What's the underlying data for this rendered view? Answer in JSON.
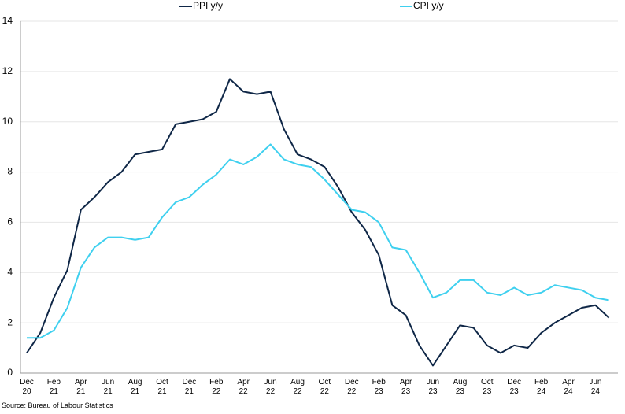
{
  "chart_data": {
    "type": "line",
    "categories": [
      "Dec\n20",
      null,
      "Feb\n21",
      null,
      "Apr\n21",
      null,
      "Jun\n21",
      null,
      "Aug\n21",
      null,
      "Oct\n21",
      null,
      "Dec\n21",
      null,
      "Feb\n22",
      null,
      "Apr\n22",
      null,
      "Jun\n22",
      null,
      "Aug\n22",
      null,
      "Oct\n22",
      null,
      "Dec\n22",
      null,
      "Feb\n23",
      null,
      "Apr\n23",
      null,
      "Jun\n23",
      null,
      "Aug\n23",
      null,
      "Oct\n23",
      null,
      "Dec\n23",
      null,
      "Feb\n24",
      null,
      "Apr\n24",
      null,
      "Jun\n24",
      null
    ],
    "series": [
      {
        "name": "PPI y/y",
        "color": "#0f2747",
        "values": [
          0.8,
          1.6,
          3.0,
          4.1,
          6.5,
          7.0,
          7.6,
          8.0,
          8.7,
          8.8,
          8.9,
          9.9,
          10.0,
          10.1,
          10.4,
          11.7,
          11.2,
          11.1,
          11.2,
          9.7,
          8.7,
          8.5,
          8.2,
          7.4,
          6.4,
          5.7,
          4.7,
          2.7,
          2.3,
          1.1,
          0.3,
          1.1,
          1.9,
          1.8,
          1.1,
          0.8,
          1.1,
          1.0,
          1.6,
          2.0,
          2.3,
          2.6,
          2.7,
          2.2
        ]
      },
      {
        "name": "CPI y/y",
        "color": "#3fd0ef",
        "values": [
          1.4,
          1.4,
          1.7,
          2.6,
          4.2,
          5.0,
          5.4,
          5.4,
          5.3,
          5.4,
          6.2,
          6.8,
          7.0,
          7.5,
          7.9,
          8.5,
          8.3,
          8.6,
          9.1,
          8.5,
          8.3,
          8.2,
          7.7,
          7.1,
          6.5,
          6.4,
          6.0,
          5.0,
          4.9,
          4.0,
          3.0,
          3.2,
          3.7,
          3.7,
          3.2,
          3.1,
          3.4,
          3.1,
          3.2,
          3.5,
          3.4,
          3.3,
          3.0,
          2.9
        ]
      }
    ],
    "ylim": [
      0,
      14
    ],
    "yticks": [
      0,
      2,
      4,
      6,
      8,
      10,
      12,
      14
    ],
    "grid": true,
    "legend": "top",
    "source": "Source: Bureau of Labour Statistics"
  }
}
